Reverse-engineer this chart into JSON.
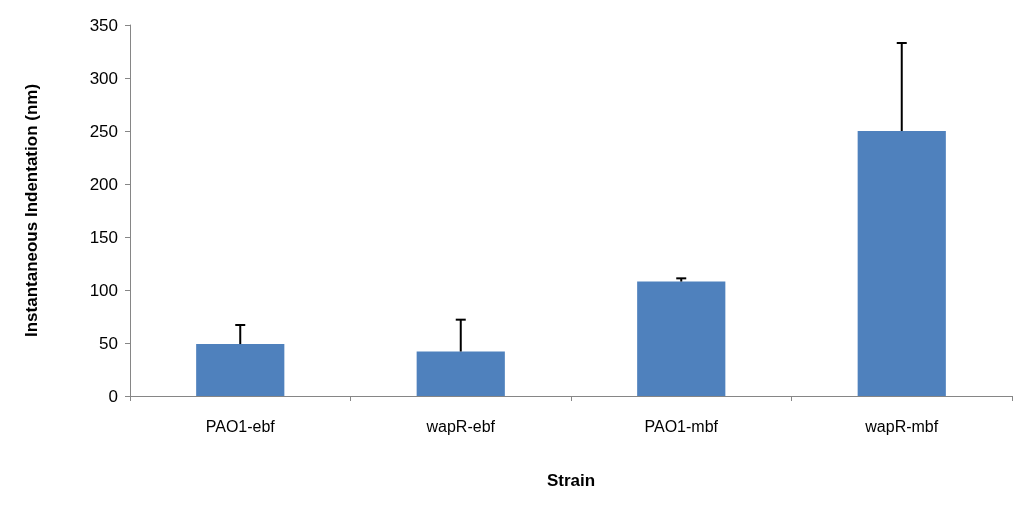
{
  "chart_data": {
    "type": "bar",
    "xlabel": "Strain",
    "ylabel": "Instantaneous Indentation (nm)",
    "categories": [
      "PAO1-ebf",
      "wapR-ebf",
      "PAO1-mbf",
      "wapR-mbf"
    ],
    "values": [
      49,
      42,
      108,
      250
    ],
    "errors": [
      [
        49,
        67
      ],
      [
        42,
        72
      ],
      [
        108,
        111
      ],
      [
        250,
        333
      ]
    ],
    "color": "#4f81bd",
    "ylim": [
      0,
      350
    ],
    "yticks": [
      0,
      50,
      100,
      150,
      200,
      250,
      300,
      350
    ],
    "grid": false
  }
}
